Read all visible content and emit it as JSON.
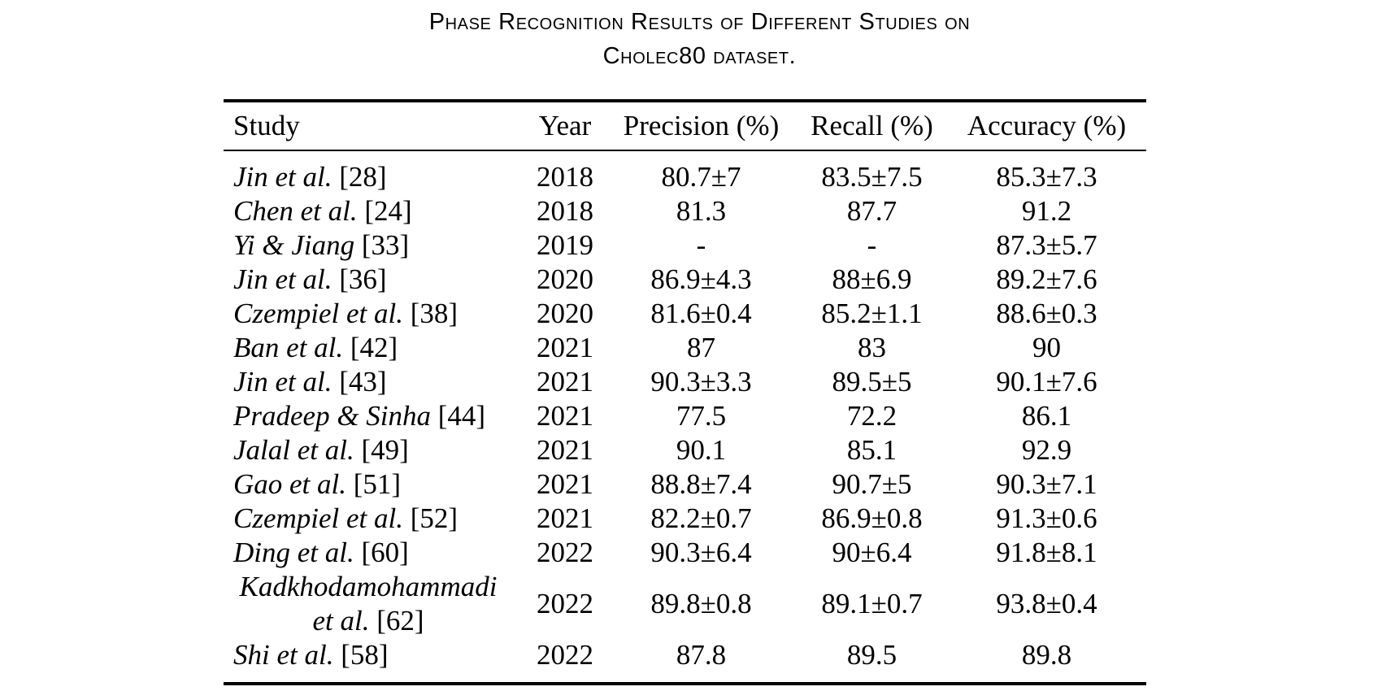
{
  "colors": {
    "background": "#ffffff",
    "text": "#000000",
    "rule": "#000000"
  },
  "caption": {
    "line1": "Phase Recognition Results of Different Studies on",
    "line2": "Cholec80 dataset."
  },
  "table": {
    "columns": [
      "Study",
      "Year",
      "Precision (%)",
      "Recall (%)",
      "Accuracy (%)"
    ],
    "rows": [
      {
        "study": "Jin et al.",
        "ref": "[28]",
        "year": "2018",
        "precision": "80.7±7",
        "recall": "83.5±7.5",
        "accuracy": "85.3±7.3"
      },
      {
        "study": "Chen et al.",
        "ref": "[24]",
        "year": "2018",
        "precision": "81.3",
        "recall": "87.7",
        "accuracy": "91.2"
      },
      {
        "study": "Yi & Jiang",
        "ref": "[33]",
        "year": "2019",
        "precision": "-",
        "recall": "-",
        "accuracy": "87.3±5.7"
      },
      {
        "study": "Jin et al.",
        "ref": "[36]",
        "year": "2020",
        "precision": "86.9±4.3",
        "recall": "88±6.9",
        "accuracy": "89.2±7.6"
      },
      {
        "study": "Czempiel et al.",
        "ref": "[38]",
        "year": "2020",
        "precision": "81.6±0.4",
        "recall": "85.2±1.1",
        "accuracy": "88.6±0.3"
      },
      {
        "study": "Ban et al.",
        "ref": "[42]",
        "year": "2021",
        "precision": "87",
        "recall": "83",
        "accuracy": "90"
      },
      {
        "study": "Jin et al.",
        "ref": "[43]",
        "year": "2021",
        "precision": "90.3±3.3",
        "recall": "89.5±5",
        "accuracy": "90.1±7.6"
      },
      {
        "study": "Pradeep & Sinha",
        "ref": "[44]",
        "year": "2021",
        "precision": "77.5",
        "recall": "72.2",
        "accuracy": "86.1"
      },
      {
        "study": "Jalal et al.",
        "ref": "[49]",
        "year": "2021",
        "precision": "90.1",
        "recall": "85.1",
        "accuracy": "92.9"
      },
      {
        "study": "Gao et al.",
        "ref": "[51]",
        "year": "2021",
        "precision": "88.8±7.4",
        "recall": "90.7±5",
        "accuracy": "90.3±7.1"
      },
      {
        "study": "Czempiel et al.",
        "ref": "[52]",
        "year": "2021",
        "precision": "82.2±0.7",
        "recall": "86.9±0.8",
        "accuracy": "91.3±0.6"
      },
      {
        "study": "Ding et al.",
        "ref": "[60]",
        "year": "2022",
        "precision": "90.3±6.4",
        "recall": "90±6.4",
        "accuracy": "91.8±8.1"
      },
      {
        "study": "Kadkhodamohammadi et al.",
        "ref": "[62]",
        "year": "2022",
        "precision": "89.8±0.8",
        "recall": "89.1±0.7",
        "accuracy": "93.8±0.4"
      },
      {
        "study": "Shi et al.",
        "ref": "[58]",
        "year": "2022",
        "precision": "87.8",
        "recall": "89.5",
        "accuracy": "89.8"
      }
    ]
  }
}
